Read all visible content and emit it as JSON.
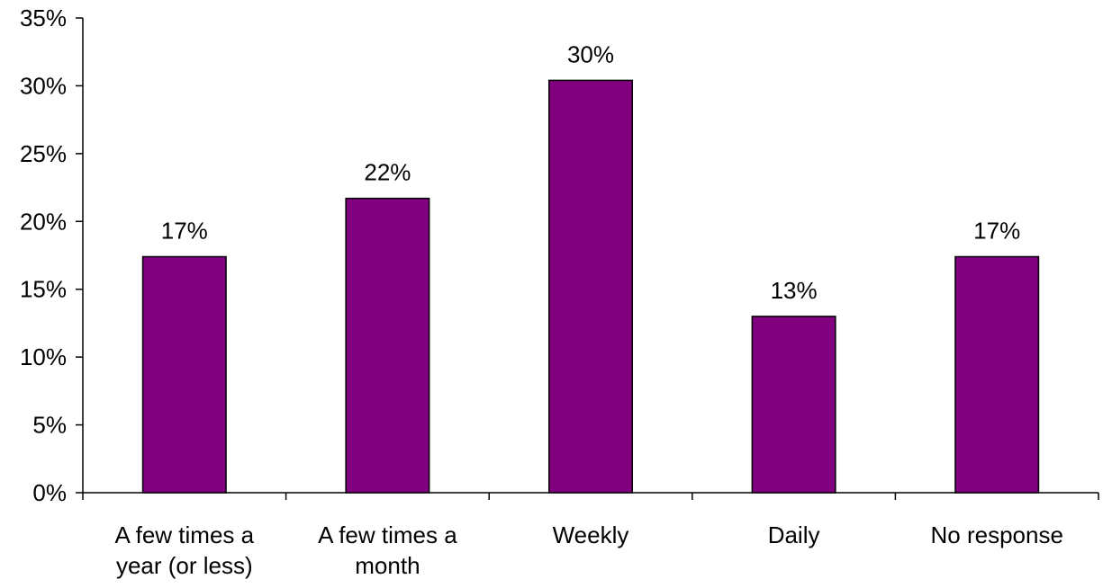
{
  "chart_data": {
    "type": "bar",
    "categories": [
      [
        "A few times a",
        "year (or less)"
      ],
      [
        "A few times a",
        "month"
      ],
      [
        "Weekly"
      ],
      [
        "Daily"
      ],
      [
        "No response"
      ]
    ],
    "values": [
      17.4,
      21.7,
      30.4,
      13.0,
      17.4
    ],
    "data_labels": [
      "17%",
      "22%",
      "30%",
      "13%",
      "17%"
    ],
    "y_ticks": [
      0,
      5,
      10,
      15,
      20,
      25,
      30,
      35
    ],
    "y_tick_labels": [
      "0%",
      "5%",
      "10%",
      "15%",
      "20%",
      "25%",
      "30%",
      "35%"
    ],
    "ylim": [
      0,
      35
    ],
    "bar_color": "#800080",
    "bar_edge_color": "#000000",
    "grid": false,
    "legend": "none"
  }
}
